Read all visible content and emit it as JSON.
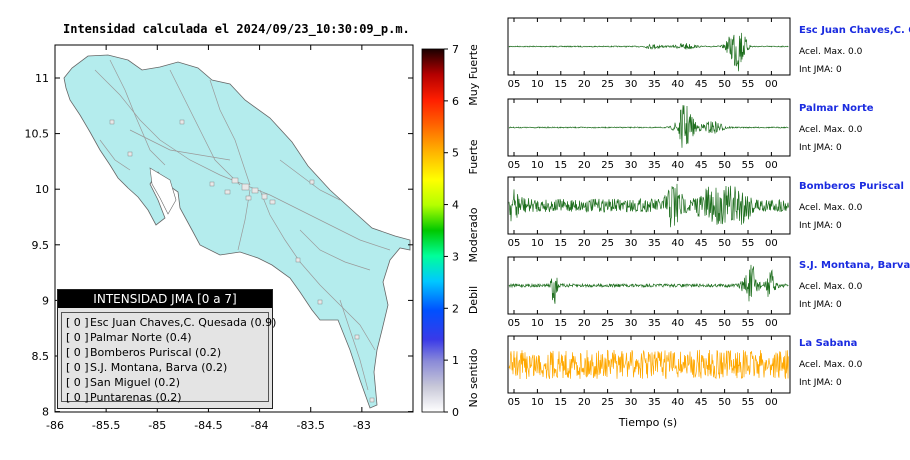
{
  "map": {
    "title": "Intensidad calculada el 2024/09/23_10:30:09_p.m.",
    "x_ticks": [
      "-86",
      "-85.5",
      "-85",
      "-84.5",
      "-84",
      "-83.5",
      "-83"
    ],
    "y_ticks": [
      "11",
      "10.5",
      "10",
      "9.5",
      "9",
      "8.5",
      "8"
    ],
    "land_color": "#b4eced"
  },
  "colorbar": {
    "ticks": [
      "7",
      "6",
      "5",
      "4",
      "3",
      "2",
      "1",
      "0"
    ],
    "classes": [
      "Muy Fuerte",
      "Fuerte",
      "Moderado",
      "Debil",
      "No sentido"
    ]
  },
  "legend": {
    "title": "INTENSIDAD JMA [0 a 7]",
    "items": [
      {
        "level": "[ 0 ]",
        "text": "Esc Juan Chaves,C. Quesada (0.9)"
      },
      {
        "level": "[ 0 ]",
        "text": "Palmar Norte (0.4)"
      },
      {
        "level": "[ 0 ]",
        "text": "Bomberos Puriscal (0.2)"
      },
      {
        "level": "[ 0 ]",
        "text": "S.J. Montana, Barva (0.2)"
      },
      {
        "level": "[ 0 ]",
        "text": "San Miguel (0.2)"
      },
      {
        "level": "[ 0 ]",
        "text": "Puntarenas (0.2)"
      }
    ]
  },
  "waveforms": {
    "x_ticks": [
      "05",
      "10",
      "15",
      "20",
      "25",
      "30",
      "35",
      "40",
      "45",
      "50",
      "55",
      "00"
    ],
    "xlabel": "Tiempo (s)",
    "stations": [
      {
        "name": "Esc Juan Chaves,C. Qu",
        "accel": "Acel. Max. 0.0",
        "jma": "Int JMA: 0",
        "color": "#1f6f1f",
        "bursts": [
          [
            52.5,
            1.0,
            1.8
          ],
          [
            41,
            0.12,
            2
          ],
          [
            34,
            0.08,
            2
          ]
        ],
        "noise": 0.02
      },
      {
        "name": "Palmar Norte",
        "accel": "Acel. Max. 0.0",
        "jma": "Int JMA: 0",
        "color": "#1f6f1f",
        "bursts": [
          [
            41,
            0.9,
            1.8
          ],
          [
            47,
            0.25,
            2.5
          ]
        ],
        "noise": 0.02
      },
      {
        "name": "Bomberos Puriscal",
        "accel": "Acel. Max. 0.0",
        "jma": "Int JMA: 0",
        "color": "#1f6f1f",
        "bursts": [
          [
            38.5,
            0.9,
            1.5
          ],
          [
            3,
            0.4,
            2
          ],
          [
            47,
            0.5,
            3
          ],
          [
            52.5,
            0.6,
            3
          ]
        ],
        "noise": 0.25
      },
      {
        "name": "S.J. Montana, Barva",
        "accel": "Acel. Max. 0.0",
        "jma": "Int JMA: 0",
        "color": "#1f6f1f",
        "bursts": [
          [
            12,
            0.9,
            0.6
          ],
          [
            55.5,
            0.8,
            1.5
          ],
          [
            60,
            0.6,
            1
          ]
        ],
        "noise": 0.06
      },
      {
        "name": "La Sabana",
        "accel": "Acel. Max. 0.0",
        "jma": "Int JMA: 0",
        "color": "#ffa800",
        "bursts": [],
        "noise": 0.55
      }
    ]
  }
}
